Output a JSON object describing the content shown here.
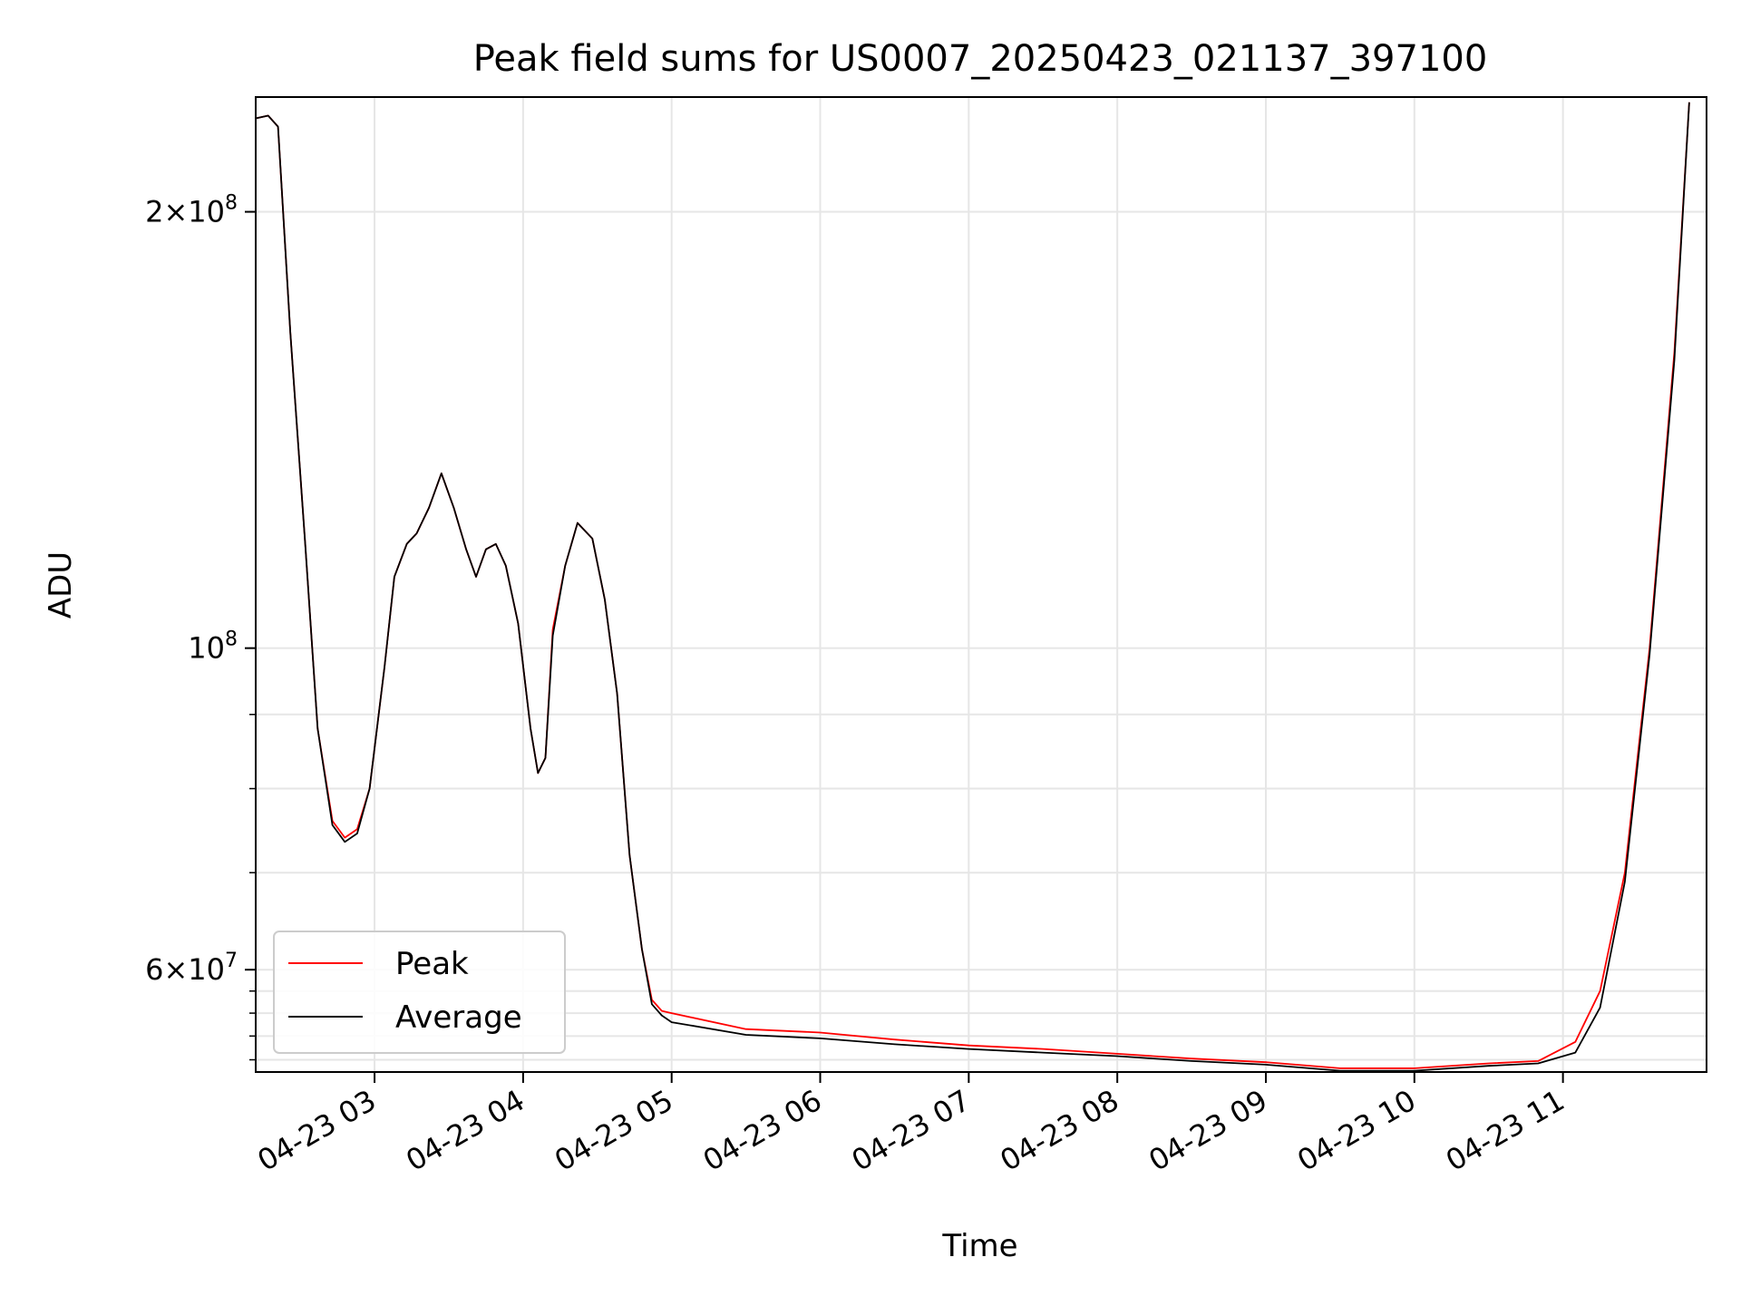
{
  "chart_data": {
    "type": "line",
    "title": "Peak field sums for US0007_20250423_021137_397100",
    "xlabel": "Time",
    "ylabel": "ADU",
    "yscale": "log",
    "ylim": [
      51000000,
      240000000
    ],
    "xlim": [
      "2025-04-23T02:12",
      "2025-04-23T11:58"
    ],
    "grid": true,
    "legend": "lower-left",
    "x_ticks": [
      {
        "t": "2025-04-23T03:00",
        "label": "04-23 03"
      },
      {
        "t": "2025-04-23T04:00",
        "label": "04-23 04"
      },
      {
        "t": "2025-04-23T05:00",
        "label": "04-23 05"
      },
      {
        "t": "2025-04-23T06:00",
        "label": "04-23 06"
      },
      {
        "t": "2025-04-23T07:00",
        "label": "04-23 07"
      },
      {
        "t": "2025-04-23T08:00",
        "label": "04-23 08"
      },
      {
        "t": "2025-04-23T09:00",
        "label": "04-23 09"
      },
      {
        "t": "2025-04-23T10:00",
        "label": "04-23 10"
      },
      {
        "t": "2025-04-23T11:00",
        "label": "04-23 11"
      }
    ],
    "y_major_ticks": [
      {
        "v": 200000000,
        "base": "2×10",
        "exp": "8"
      },
      {
        "v": 100000000,
        "base": "10",
        "exp": "8"
      },
      {
        "v": 60000000,
        "base": "6×10",
        "exp": "7"
      }
    ],
    "y_minor_ticks": [
      52000000,
      54000000,
      56000000,
      58000000,
      60000000,
      70000000,
      80000000,
      90000000,
      100000000,
      200000000
    ],
    "series": [
      {
        "name": "Peak",
        "color": "#ff0000",
        "points": [
          [
            "2025-04-23T02:12",
            232000000
          ],
          [
            "2025-04-23T02:17",
            233000000
          ],
          [
            "2025-04-23T02:21",
            229000000
          ],
          [
            "2025-04-23T02:26",
            165000000
          ],
          [
            "2025-04-23T02:32",
            118000000
          ],
          [
            "2025-04-23T02:37",
            88000000
          ],
          [
            "2025-04-23T02:43",
            76000000
          ],
          [
            "2025-04-23T02:48",
            74000000
          ],
          [
            "2025-04-23T02:53",
            75000000
          ],
          [
            "2025-04-23T02:58",
            80000000
          ],
          [
            "2025-04-23T03:04",
            97000000
          ],
          [
            "2025-04-23T03:08",
            112000000
          ],
          [
            "2025-04-23T03:13",
            118000000
          ],
          [
            "2025-04-23T03:17",
            120000000
          ],
          [
            "2025-04-23T03:22",
            125000000
          ],
          [
            "2025-04-23T03:27",
            132000000
          ],
          [
            "2025-04-23T03:32",
            125000000
          ],
          [
            "2025-04-23T03:37",
            117000000
          ],
          [
            "2025-04-23T03:41",
            112000000
          ],
          [
            "2025-04-23T03:45",
            117000000
          ],
          [
            "2025-04-23T03:49",
            118000000
          ],
          [
            "2025-04-23T03:53",
            114000000
          ],
          [
            "2025-04-23T03:58",
            104000000
          ],
          [
            "2025-04-23T04:03",
            88000000
          ],
          [
            "2025-04-23T04:06",
            82000000
          ],
          [
            "2025-04-23T04:09",
            84000000
          ],
          [
            "2025-04-23T04:12",
            103000000
          ],
          [
            "2025-04-23T04:17",
            114000000
          ],
          [
            "2025-04-23T04:22",
            122000000
          ],
          [
            "2025-04-23T04:28",
            119000000
          ],
          [
            "2025-04-23T04:33",
            108000000
          ],
          [
            "2025-04-23T04:38",
            93000000
          ],
          [
            "2025-04-23T04:43",
            72000000
          ],
          [
            "2025-04-23T04:48",
            62000000
          ],
          [
            "2025-04-23T04:52",
            57200000
          ],
          [
            "2025-04-23T04:56",
            56200000
          ],
          [
            "2025-04-23T05:00",
            56000000
          ],
          [
            "2025-04-23T05:30",
            54600000
          ],
          [
            "2025-04-23T06:00",
            54300000
          ],
          [
            "2025-04-23T06:30",
            53700000
          ],
          [
            "2025-04-23T07:00",
            53200000
          ],
          [
            "2025-04-23T07:30",
            52900000
          ],
          [
            "2025-04-23T08:00",
            52500000
          ],
          [
            "2025-04-23T08:30",
            52100000
          ],
          [
            "2025-04-23T09:00",
            51800000
          ],
          [
            "2025-04-23T09:30",
            51300000
          ],
          [
            "2025-04-23T10:00",
            51300000
          ],
          [
            "2025-04-23T10:30",
            51700000
          ],
          [
            "2025-04-23T10:50",
            51900000
          ],
          [
            "2025-04-23T11:05",
            53500000
          ],
          [
            "2025-04-23T11:15",
            58000000
          ],
          [
            "2025-04-23T11:25",
            70000000
          ],
          [
            "2025-04-23T11:35",
            100000000
          ],
          [
            "2025-04-23T11:45",
            160000000
          ],
          [
            "2025-04-23T11:51",
            238000000
          ]
        ]
      },
      {
        "name": "Average",
        "color": "#000000",
        "points": [
          [
            "2025-04-23T02:12",
            232000000
          ],
          [
            "2025-04-23T02:17",
            233000000
          ],
          [
            "2025-04-23T02:21",
            229000000
          ],
          [
            "2025-04-23T02:26",
            165000000
          ],
          [
            "2025-04-23T02:32",
            118000000
          ],
          [
            "2025-04-23T02:37",
            88000000
          ],
          [
            "2025-04-23T02:43",
            75500000
          ],
          [
            "2025-04-23T02:48",
            73500000
          ],
          [
            "2025-04-23T02:53",
            74500000
          ],
          [
            "2025-04-23T02:58",
            80000000
          ],
          [
            "2025-04-23T03:04",
            97000000
          ],
          [
            "2025-04-23T03:08",
            112000000
          ],
          [
            "2025-04-23T03:13",
            118000000
          ],
          [
            "2025-04-23T03:17",
            120000000
          ],
          [
            "2025-04-23T03:22",
            125000000
          ],
          [
            "2025-04-23T03:27",
            132000000
          ],
          [
            "2025-04-23T03:32",
            125000000
          ],
          [
            "2025-04-23T03:37",
            117000000
          ],
          [
            "2025-04-23T03:41",
            112000000
          ],
          [
            "2025-04-23T03:45",
            117000000
          ],
          [
            "2025-04-23T03:49",
            118000000
          ],
          [
            "2025-04-23T03:53",
            114000000
          ],
          [
            "2025-04-23T03:58",
            104000000
          ],
          [
            "2025-04-23T04:03",
            88000000
          ],
          [
            "2025-04-23T04:06",
            82000000
          ],
          [
            "2025-04-23T04:09",
            84000000
          ],
          [
            "2025-04-23T04:12",
            102000000
          ],
          [
            "2025-04-23T04:17",
            114000000
          ],
          [
            "2025-04-23T04:22",
            122000000
          ],
          [
            "2025-04-23T04:28",
            119000000
          ],
          [
            "2025-04-23T04:33",
            108000000
          ],
          [
            "2025-04-23T04:38",
            93000000
          ],
          [
            "2025-04-23T04:43",
            72000000
          ],
          [
            "2025-04-23T04:48",
            62000000
          ],
          [
            "2025-04-23T04:52",
            56800000
          ],
          [
            "2025-04-23T04:56",
            55800000
          ],
          [
            "2025-04-23T05:00",
            55200000
          ],
          [
            "2025-04-23T05:30",
            54100000
          ],
          [
            "2025-04-23T06:00",
            53800000
          ],
          [
            "2025-04-23T06:30",
            53300000
          ],
          [
            "2025-04-23T07:00",
            52900000
          ],
          [
            "2025-04-23T07:30",
            52600000
          ],
          [
            "2025-04-23T08:00",
            52300000
          ],
          [
            "2025-04-23T08:30",
            51900000
          ],
          [
            "2025-04-23T09:00",
            51600000
          ],
          [
            "2025-04-23T09:30",
            51100000
          ],
          [
            "2025-04-23T10:00",
            51100000
          ],
          [
            "2025-04-23T10:30",
            51500000
          ],
          [
            "2025-04-23T10:50",
            51700000
          ],
          [
            "2025-04-23T11:05",
            52600000
          ],
          [
            "2025-04-23T11:15",
            56500000
          ],
          [
            "2025-04-23T11:25",
            69000000
          ],
          [
            "2025-04-23T11:35",
            99000000
          ],
          [
            "2025-04-23T11:45",
            158000000
          ],
          [
            "2025-04-23T11:51",
            238000000
          ]
        ]
      }
    ]
  }
}
